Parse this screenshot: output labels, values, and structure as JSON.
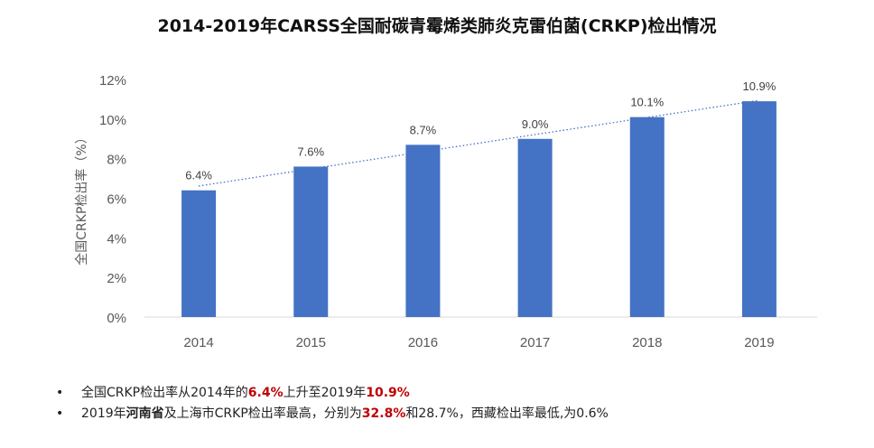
{
  "chart_data": {
    "type": "bar",
    "title": "2014-2019年CARSS全国耐碳青霉烯类肺炎克雷伯菌(CRKP)检出情况",
    "xlabel": "",
    "ylabel": "全国CRKP检出率（%）",
    "categories": [
      "2014",
      "2015",
      "2016",
      "2017",
      "2018",
      "2019"
    ],
    "values": [
      6.4,
      7.6,
      8.7,
      9.0,
      10.1,
      10.9
    ],
    "data_labels": [
      "6.4%",
      "7.6%",
      "8.7%",
      "9.0%",
      "10.1%",
      "10.9%"
    ],
    "ylim": [
      0,
      12
    ],
    "yticks": [
      "0%",
      "2%",
      "4%",
      "6%",
      "8%",
      "10%",
      "12%"
    ],
    "trendline": "linear, dotted",
    "bar_color": "#4472C4",
    "grid": false
  },
  "notes": [
    {
      "parts": [
        {
          "t": "全国CRKP检出率从2014年的"
        },
        {
          "t": "6.4%",
          "s": "red"
        },
        {
          "t": "上升至2019年"
        },
        {
          "t": "10.9%",
          "s": "red"
        }
      ]
    },
    {
      "parts": [
        {
          "t": "2019年"
        },
        {
          "t": "河南省",
          "s": "bold"
        },
        {
          "t": "及上海市CRKP检出率最高，分别为"
        },
        {
          "t": "32.8%",
          "s": "red"
        },
        {
          "t": "和28.7%，西藏检出率最低,为0.6%"
        }
      ]
    }
  ],
  "bullet": "•"
}
